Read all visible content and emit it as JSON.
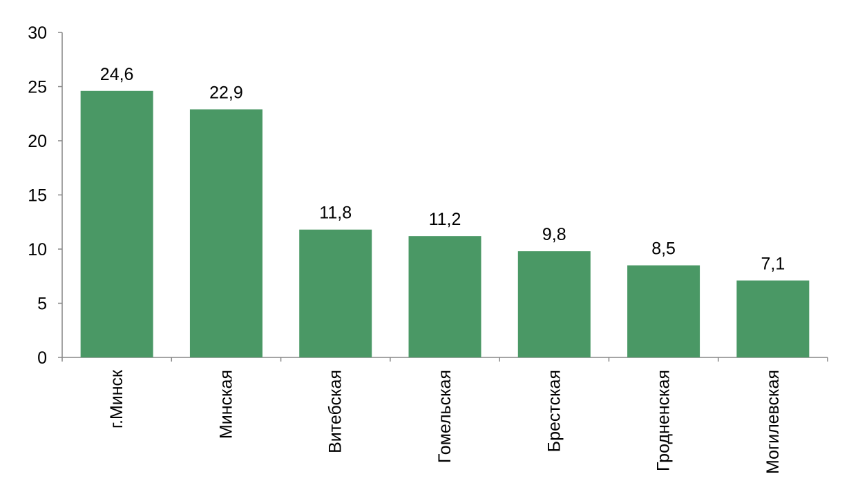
{
  "chart_data": {
    "type": "bar",
    "title": "",
    "xlabel": "",
    "ylabel": "",
    "categories": [
      "г.Минск",
      "Минская",
      "Витебская",
      "Гомельская",
      "Брестская",
      "Гродненская",
      "Могилевская"
    ],
    "values": [
      24.6,
      22.9,
      11.8,
      11.2,
      9.8,
      8.5,
      7.1
    ],
    "data_labels": [
      "24,6",
      "22,9",
      "11,8",
      "11,2",
      "9,8",
      "8,5",
      "7,1"
    ],
    "ylim": [
      0,
      30
    ],
    "yticks": [
      0,
      5,
      10,
      15,
      20,
      25,
      30
    ],
    "ytick_labels": [
      "0",
      "5",
      "10",
      "15",
      "20",
      "25",
      "30"
    ],
    "grid": false,
    "legend": "none",
    "bar_color": "#4a9865",
    "axis_color": "#868686"
  }
}
